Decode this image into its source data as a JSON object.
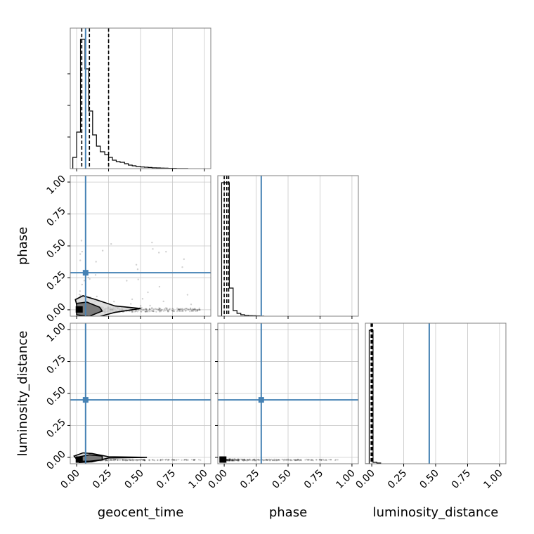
{
  "chart_data": {
    "type": "corner",
    "parameters": [
      "geocent_time",
      "phase",
      "luminosity_distance"
    ],
    "axis_labels": [
      "geocent_time",
      "phase",
      "luminosity_distance"
    ],
    "range": [
      -0.05,
      1.05
    ],
    "tick_values": [
      0.0,
      0.25,
      0.5,
      0.75,
      1.0
    ],
    "tick_labels": [
      "0.00",
      "0.25",
      "0.50",
      "0.75",
      "1.00"
    ],
    "grid": true,
    "truths": [
      0.07,
      0.29,
      0.45
    ],
    "truth_color": "#4682b4",
    "quantiles": [
      [
        0.04,
        0.1,
        0.25
      ],
      [
        0.0,
        0.02,
        0.035
      ],
      [
        -0.005,
        0.0,
        0.005
      ]
    ],
    "histograms": [
      {
        "parameter": "geocent_time",
        "bin_edges": [
          -0.03,
          0.0,
          0.03,
          0.065,
          0.095,
          0.125,
          0.155,
          0.185,
          0.22,
          0.25,
          0.28,
          0.31,
          0.34,
          0.375,
          0.405,
          0.435,
          0.465,
          0.5,
          0.53,
          0.56,
          0.59,
          0.625,
          0.655,
          0.685,
          0.715,
          0.745,
          0.78,
          0.81,
          0.84,
          0.87
        ],
        "values": [
          0.08,
          0.26,
          0.92,
          0.71,
          0.41,
          0.24,
          0.16,
          0.12,
          0.1,
          0.08,
          0.06,
          0.05,
          0.045,
          0.035,
          0.025,
          0.02,
          0.015,
          0.012,
          0.01,
          0.008,
          0.006,
          0.005,
          0.004,
          0.003,
          0.002,
          0.002,
          0.001,
          0.001,
          0.0005
        ]
      },
      {
        "parameter": "phase",
        "bin_edges": [
          -0.05,
          -0.02,
          0.01,
          0.04,
          0.07,
          0.1,
          0.13,
          0.16,
          0.19,
          0.22,
          0.25,
          0.28,
          0.31
        ],
        "values": [
          0.0,
          0.95,
          0.95,
          0.2,
          0.04,
          0.02,
          0.01,
          0.006,
          0.004,
          0.003,
          0.002,
          0.001
        ]
      },
      {
        "parameter": "luminosity_distance",
        "bin_edges": [
          -0.05,
          -0.02,
          0.01,
          0.04,
          0.07
        ],
        "values": [
          0.0,
          0.95,
          0.01,
          0.005
        ]
      }
    ],
    "scatter_panels": [
      {
        "x": "geocent_time",
        "y": "phase",
        "mode": {
          "x": 0.02,
          "y": 0.0
        },
        "contour_inner": {
          "x": [
            0.0,
            0.08,
            0.18,
            0.2,
            0.1,
            0.0,
            0.0
          ],
          "y": [
            0.05,
            0.06,
            0.02,
            -0.01,
            -0.05,
            -0.04,
            0.05
          ]
        },
        "contour_outer": {
          "x": [
            -0.01,
            0.05,
            0.15,
            0.3,
            0.5,
            0.3,
            0.15,
            0.03,
            -0.01
          ],
          "y": [
            0.08,
            0.11,
            0.08,
            0.03,
            0.01,
            -0.02,
            -0.06,
            -0.07,
            0.08
          ]
        }
      },
      {
        "x": "geocent_time",
        "y": "luminosity_distance",
        "mode": {
          "x": 0.02,
          "y": -0.02
        },
        "contour_inner": {
          "x": [
            0.0,
            0.1,
            0.2,
            0.2,
            0.1,
            0.0,
            0.0
          ],
          "y": [
            0.0,
            0.02,
            0.01,
            -0.02,
            -0.03,
            -0.03,
            0.0
          ]
        },
        "contour_outer": {
          "x": [
            -0.02,
            0.05,
            0.12,
            0.25,
            0.55,
            0.25,
            0.12,
            0.02,
            -0.02
          ],
          "y": [
            0.01,
            0.035,
            0.03,
            0.005,
            0.0,
            -0.005,
            -0.035,
            -0.04,
            0.01
          ]
        }
      },
      {
        "x": "phase",
        "y": "luminosity_distance",
        "mode": {
          "x": -0.01,
          "y": -0.02
        },
        "contour_inner": {
          "x": [],
          "y": []
        },
        "contour_outer": {
          "x": [],
          "y": []
        }
      }
    ]
  }
}
